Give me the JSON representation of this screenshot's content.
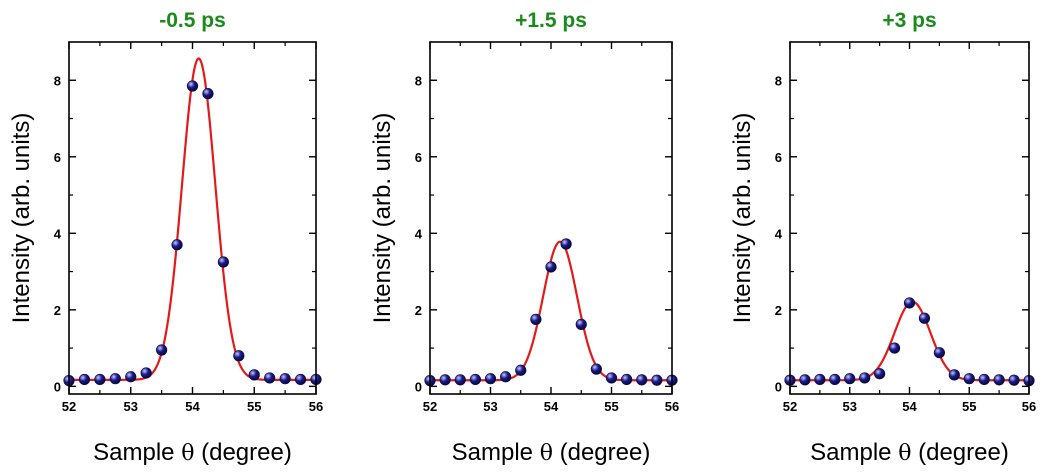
{
  "colors": {
    "title": "#1a8a1a",
    "fit": "#e31a1a",
    "marker": "#1a1a8c",
    "marker_highlight": "#c9c9ff"
  },
  "chart_data": [
    {
      "type": "scatter",
      "title": "-0.5 ps",
      "xlabel_prefix": "Sample ",
      "xlabel_symbol": "θ",
      "xlabel_suffix": " (degree)",
      "ylabel": "Intensity (arb. units)",
      "xlim": [
        52,
        56
      ],
      "ylim": [
        -0.2,
        9
      ],
      "xticks": [
        52,
        53,
        54,
        55,
        56
      ],
      "xtick_labels": [
        "52",
        "53",
        "54",
        "55",
        "56"
      ],
      "yticks": [
        0,
        2,
        4,
        6,
        8
      ],
      "ytick_labels": [
        "0",
        "2",
        "4",
        "6",
        "8"
      ],
      "series": [
        {
          "x": [
            52.0,
            52.25,
            52.5,
            52.75,
            53.0,
            53.25,
            53.5,
            53.75,
            54.0,
            54.25,
            54.5,
            54.75,
            55.0,
            55.25,
            55.5,
            55.75,
            56.0
          ],
          "y": [
            0.15,
            0.18,
            0.18,
            0.2,
            0.25,
            0.35,
            0.95,
            3.7,
            7.85,
            7.65,
            3.25,
            0.8,
            0.3,
            0.22,
            0.2,
            0.18,
            0.18
          ]
        }
      ],
      "fit": {
        "center": 54.1,
        "amplitude": 8.4,
        "sigma": 0.27,
        "baseline": 0.17
      }
    },
    {
      "type": "scatter",
      "title": "+1.5 ps",
      "xlabel_prefix": "Sample ",
      "xlabel_symbol": "θ",
      "xlabel_suffix": " (degree)",
      "ylabel": "Intensity (arb. units)",
      "xlim": [
        52,
        56
      ],
      "ylim": [
        -0.2,
        9
      ],
      "xticks": [
        52,
        53,
        54,
        55,
        56
      ],
      "xtick_labels": [
        "52",
        "53",
        "54",
        "55",
        "56"
      ],
      "yticks": [
        0,
        2,
        4,
        6,
        8
      ],
      "ytick_labels": [
        "0",
        "2",
        "4",
        "6",
        "8"
      ],
      "series": [
        {
          "x": [
            52.0,
            52.25,
            52.5,
            52.75,
            53.0,
            53.25,
            53.5,
            53.75,
            54.0,
            54.25,
            54.5,
            54.75,
            55.0,
            55.25,
            55.5,
            55.75,
            56.0
          ],
          "y": [
            0.15,
            0.17,
            0.17,
            0.18,
            0.2,
            0.25,
            0.42,
            1.75,
            3.12,
            3.72,
            1.62,
            0.45,
            0.22,
            0.18,
            0.17,
            0.16,
            0.16
          ]
        }
      ],
      "fit": {
        "center": 54.15,
        "amplitude": 3.62,
        "sigma": 0.28,
        "baseline": 0.16
      }
    },
    {
      "type": "scatter",
      "title": "+3 ps",
      "xlabel_prefix": "Sample ",
      "xlabel_symbol": "θ",
      "xlabel_suffix": " (degree)",
      "ylabel": "Intensity (arb. units)",
      "xlim": [
        52,
        56
      ],
      "ylim": [
        -0.2,
        9
      ],
      "xticks": [
        52,
        53,
        54,
        55,
        56
      ],
      "xtick_labels": [
        "52",
        "53",
        "54",
        "55",
        "56"
      ],
      "yticks": [
        0,
        2,
        4,
        6,
        8
      ],
      "ytick_labels": [
        "0",
        "2",
        "4",
        "6",
        "8"
      ],
      "series": [
        {
          "x": [
            52.0,
            52.25,
            52.5,
            52.75,
            53.0,
            53.25,
            53.5,
            53.75,
            54.0,
            54.25,
            54.5,
            54.75,
            55.0,
            55.25,
            55.5,
            55.75,
            56.0
          ],
          "y": [
            0.16,
            0.17,
            0.18,
            0.18,
            0.2,
            0.22,
            0.33,
            1.0,
            2.18,
            1.78,
            0.88,
            0.3,
            0.2,
            0.18,
            0.17,
            0.16,
            0.15
          ]
        }
      ],
      "fit": {
        "center": 54.05,
        "amplitude": 2.05,
        "sigma": 0.3,
        "baseline": 0.16
      }
    }
  ]
}
